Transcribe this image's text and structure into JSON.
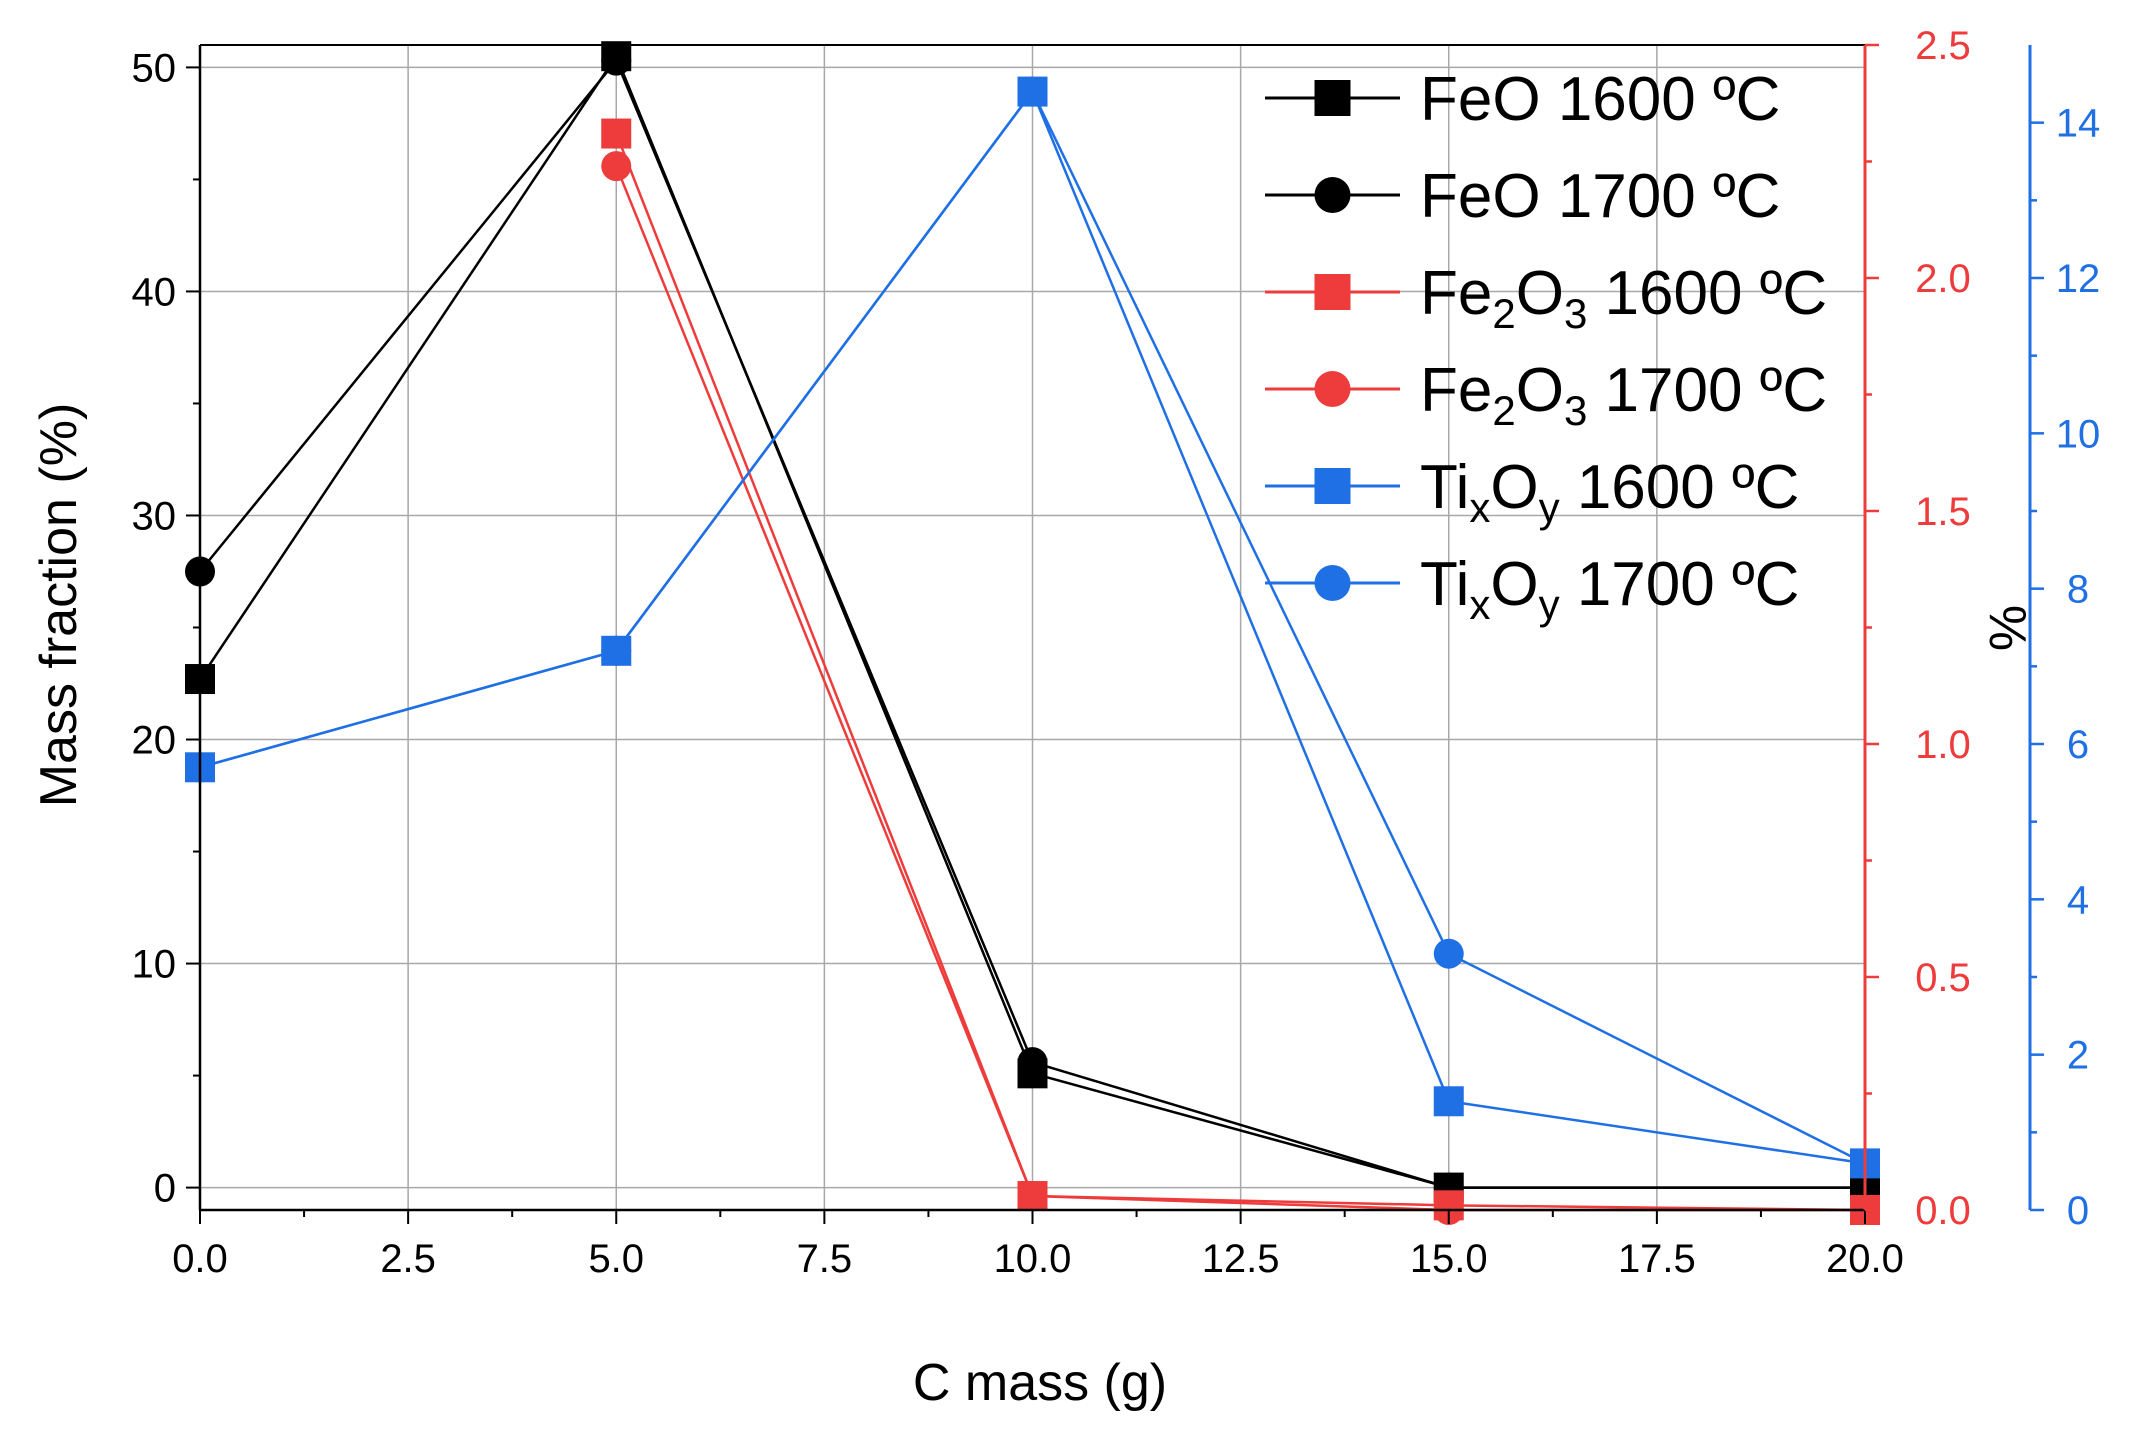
{
  "chart_data": {
    "type": "line",
    "xlabel": "C mass (g)",
    "ylabel": "Mass fraction (%)",
    "y2label": "%",
    "xlim": [
      0,
      20
    ],
    "ylim": [
      -1,
      51
    ],
    "y2lim": [
      0,
      2.5
    ],
    "y3lim": [
      0,
      15
    ],
    "x_ticks": [
      "0.0",
      "2.5",
      "5.0",
      "7.5",
      "10.0",
      "12.5",
      "15.0",
      "17.5",
      "20.0"
    ],
    "y_ticks": [
      "0",
      "10",
      "20",
      "30",
      "40",
      "50"
    ],
    "y2_ticks": [
      "0.0",
      "0.5",
      "1.0",
      "1.5",
      "2.0",
      "2.5"
    ],
    "y3_ticks": [
      "0",
      "2",
      "4",
      "6",
      "8",
      "10",
      "12",
      "14"
    ],
    "grid": true,
    "legend_position": "top-right",
    "colors": {
      "feo": "#000000",
      "fe2o3": "#ee3b3b",
      "tixoy": "#1f6fe5"
    },
    "series": [
      {
        "name": "FeO 1600 ºC",
        "formula": [
          "FeO",
          " 1600 ºC"
        ],
        "axis": "left",
        "marker": "square",
        "color": "#000000",
        "x": [
          0,
          5,
          10,
          15,
          20
        ],
        "values": [
          22.7,
          50.5,
          5.1,
          0,
          0
        ]
      },
      {
        "name": "FeO 1700 ºC",
        "formula": [
          "FeO",
          " 1700 ºC"
        ],
        "axis": "left",
        "marker": "circle",
        "color": "#000000",
        "x": [
          0,
          5,
          10,
          15,
          20
        ],
        "values": [
          27.5,
          50.3,
          5.6,
          0,
          0
        ]
      },
      {
        "name": "Fe2O3 1600 ºC",
        "formula": [
          "Fe",
          "2",
          "O",
          "3",
          " 1600 ºC"
        ],
        "axis": "right",
        "marker": "square",
        "color": "#ee3b3b",
        "x": [
          0,
          5,
          10,
          15,
          20
        ],
        "values": [
          null,
          2.31,
          0.03,
          0.01,
          0
        ]
      },
      {
        "name": "Fe2O3 1700 ºC",
        "formula": [
          "Fe",
          "2",
          "O",
          "3",
          " 1700 ºC"
        ],
        "axis": "right",
        "marker": "circle",
        "color": "#ee3b3b",
        "x": [
          0,
          5,
          10,
          15,
          20
        ],
        "values": [
          null,
          2.24,
          0.03,
          0,
          0
        ]
      },
      {
        "name": "TixOy 1600 ºC",
        "formula": [
          "Ti",
          "x",
          "O",
          "y",
          " 1600 ºC"
        ],
        "axis": "right2",
        "marker": "square",
        "color": "#1f6fe5",
        "x": [
          0,
          5,
          10,
          15,
          20
        ],
        "values": [
          5.7,
          7.2,
          14.4,
          1.4,
          0.6
        ]
      },
      {
        "name": "TixOy 1700 ºC",
        "formula": [
          "Ti",
          "x",
          "O",
          "y",
          " 1700 ºC"
        ],
        "axis": "right2",
        "marker": "circle",
        "color": "#1f6fe5",
        "x": [
          0,
          5,
          10,
          15,
          20
        ],
        "values": [
          5.7,
          7.2,
          14.4,
          3.3,
          0.6
        ]
      }
    ]
  }
}
